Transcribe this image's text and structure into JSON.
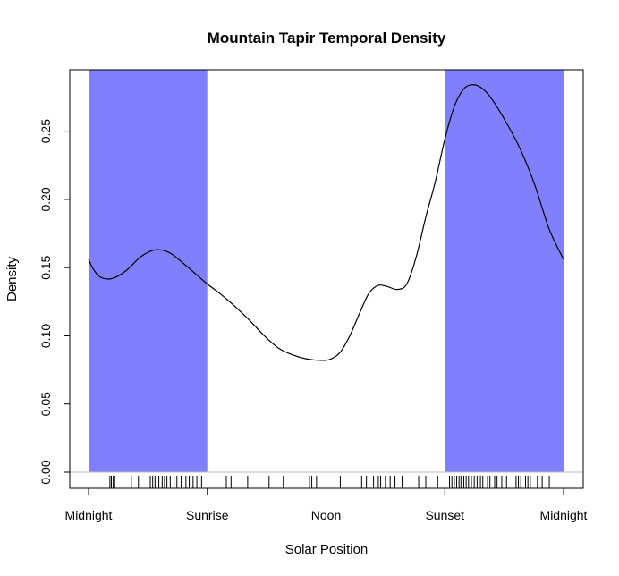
{
  "chart_data": {
    "type": "line",
    "title": "Mountain Tapir Temporal Density",
    "xlabel": "Solar Position",
    "ylabel": "Density",
    "xlim": [
      0,
      1
    ],
    "ylim": [
      0,
      0.295
    ],
    "x_ticks": [
      {
        "value": 0,
        "label": "Midnight"
      },
      {
        "value": 0.25,
        "label": "Sunrise"
      },
      {
        "value": 0.5,
        "label": "Noon"
      },
      {
        "value": 0.75,
        "label": "Sunset"
      },
      {
        "value": 1,
        "label": "Midnight"
      }
    ],
    "y_ticks": [
      {
        "value": 0,
        "label": "0.00"
      },
      {
        "value": 0.05,
        "label": "0.05"
      },
      {
        "value": 0.1,
        "label": "0.10"
      },
      {
        "value": 0.15,
        "label": "0.15"
      },
      {
        "value": 0.2,
        "label": "0.20"
      },
      {
        "value": 0.25,
        "label": "0.25"
      }
    ],
    "shaded_intervals": [
      {
        "from": 0,
        "to": 0.25
      },
      {
        "from": 0.75,
        "to": 1
      }
    ],
    "colors": {
      "shade": "#8080ff",
      "line": "#000000",
      "baseline": "#bebebe"
    },
    "series": [
      {
        "x": [
          0.0,
          0.01,
          0.025,
          0.05,
          0.08,
          0.11,
          0.14,
          0.17,
          0.2,
          0.23,
          0.25,
          0.28,
          0.31,
          0.34,
          0.37,
          0.4,
          0.43,
          0.46,
          0.49,
          0.51,
          0.53,
          0.55,
          0.57,
          0.59,
          0.61,
          0.63,
          0.65,
          0.67,
          0.69,
          0.71,
          0.73,
          0.75,
          0.77,
          0.79,
          0.81,
          0.83,
          0.85,
          0.88,
          0.91,
          0.94,
          0.97,
          1.0
        ],
        "y": [
          0.156,
          0.149,
          0.143,
          0.142,
          0.148,
          0.158,
          0.163,
          0.161,
          0.153,
          0.144,
          0.138,
          0.13,
          0.121,
          0.111,
          0.1,
          0.091,
          0.086,
          0.083,
          0.082,
          0.083,
          0.088,
          0.1,
          0.116,
          0.131,
          0.137,
          0.136,
          0.134,
          0.138,
          0.158,
          0.187,
          0.213,
          0.244,
          0.268,
          0.281,
          0.284,
          0.281,
          0.273,
          0.256,
          0.236,
          0.21,
          0.178,
          0.156
        ]
      }
    ],
    "rug": [
      0.045,
      0.048,
      0.052,
      0.055,
      0.09,
      0.105,
      0.13,
      0.135,
      0.14,
      0.148,
      0.155,
      0.16,
      0.165,
      0.172,
      0.18,
      0.186,
      0.195,
      0.205,
      0.212,
      0.22,
      0.228,
      0.238,
      0.29,
      0.3,
      0.335,
      0.38,
      0.41,
      0.465,
      0.47,
      0.48,
      0.53,
      0.575,
      0.585,
      0.6,
      0.61,
      0.615,
      0.625,
      0.635,
      0.645,
      0.66,
      0.695,
      0.71,
      0.735,
      0.76,
      0.765,
      0.77,
      0.775,
      0.78,
      0.784,
      0.79,
      0.795,
      0.8,
      0.806,
      0.812,
      0.818,
      0.825,
      0.83,
      0.84,
      0.845,
      0.855,
      0.86,
      0.87,
      0.88,
      0.9,
      0.905,
      0.91,
      0.92,
      0.925,
      0.93,
      0.945,
      0.955,
      0.97
    ]
  }
}
